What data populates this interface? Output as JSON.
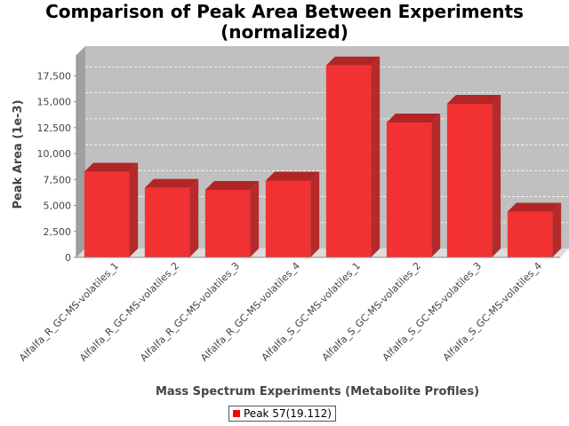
{
  "chart_data": {
    "type": "bar",
    "title_line1": "Comparison of Peak Area Between Experiments",
    "title_line2": "(normalized)",
    "xlabel": "Mass Spectrum Experiments (Metabolite Profiles)",
    "ylabel": "Peak Area (1e-3)",
    "categories": [
      "Alfalfa_R_GC-MS-volatiles_1",
      "Alfalfa_R_GC-MS-volatiles_2",
      "Alfalfa_R_GC-MS-volatiles_3",
      "Alfalfa_R_GC-MS-volatiles_4",
      "Alfalfa_S_GC-MS-volatiles_1",
      "Alfalfa_S_GC-MS-volatiles_2",
      "Alfalfa_S_GC-MS-volatiles_3",
      "Alfalfa_S_GC-MS-volatiles_4"
    ],
    "series": [
      {
        "name": "Peak 57(19.112)",
        "color": "#ff0000",
        "values": [
          8250,
          6700,
          6500,
          7400,
          18500,
          13000,
          14800,
          4400
        ]
      }
    ],
    "ylim": [
      0,
      19500
    ],
    "yticks": [
      0,
      2500,
      5000,
      7500,
      10000,
      12500,
      15000,
      17500
    ],
    "ytick_labels": [
      "0",
      "2,500",
      "5,000",
      "7,500",
      "10,000",
      "12,500",
      "15,000",
      "17,500"
    ],
    "grid": true,
    "legend_position": "bottom",
    "render_style": "3d"
  }
}
